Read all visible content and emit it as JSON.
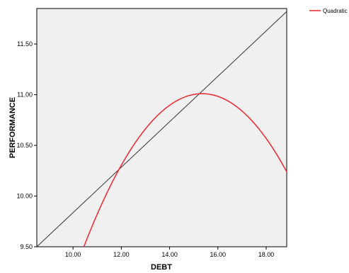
{
  "chart_data": {
    "type": "line",
    "xlabel": "DEBT",
    "ylabel": "PERFORMANCE",
    "xlim": [
      8.5,
      18.85
    ],
    "ylim": [
      9.5,
      11.85
    ],
    "x_ticks": [
      "10.00",
      "12.00",
      "14.00",
      "16.00",
      "18.00"
    ],
    "y_ticks": [
      "9.50",
      "10.00",
      "10.50",
      "11.00",
      "11.50"
    ],
    "x_tick_values": [
      10,
      12,
      14,
      16,
      18
    ],
    "y_tick_values": [
      9.5,
      10,
      10.5,
      11,
      11.5
    ],
    "grid": false,
    "legend": {
      "placement": "top-right",
      "entries": [
        "Quadratic"
      ]
    },
    "series": [
      {
        "name": "Quadratic",
        "color": "#e8323c",
        "kind": "quadratic-fit",
        "vertex": [
          15.35,
          11.01
        ],
        "points": [
          [
            10.45,
            9.5
          ],
          [
            11.9,
            10.25
          ],
          [
            13.0,
            10.7
          ],
          [
            14.0,
            10.93
          ],
          [
            15.35,
            11.01
          ],
          [
            16.5,
            10.94
          ],
          [
            17.5,
            10.7
          ],
          [
            18.85,
            10.28
          ]
        ]
      },
      {
        "kind": "reference-line",
        "color": "#333333",
        "points": [
          [
            8.5,
            9.5
          ],
          [
            18.85,
            11.82
          ]
        ]
      }
    ]
  },
  "colors": {
    "plot_background": "#f0f0f0",
    "axis": "#000000",
    "fit_line": "#e8323c",
    "reference_line": "#333333"
  }
}
